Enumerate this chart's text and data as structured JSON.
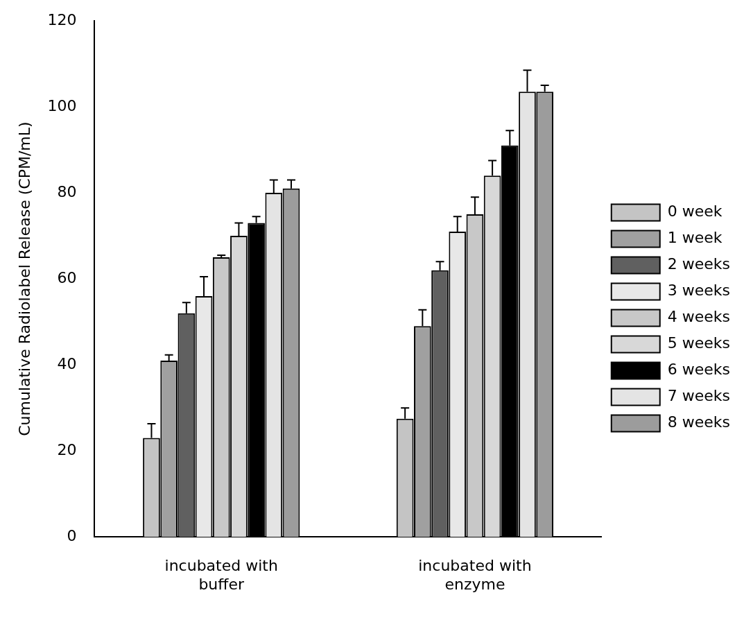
{
  "chart_data": {
    "type": "bar",
    "ylabel": "Cumulative Radiolabel Release (CPM/mL)",
    "categories": [
      "incubated with buffer",
      "incubated with enzyme"
    ],
    "series": [
      {
        "name": "0 week",
        "color": "#c4c4c4",
        "values": [
          23,
          27.5
        ],
        "errors": [
          3.3,
          2.5
        ]
      },
      {
        "name": "1 week",
        "color": "#a0a0a0",
        "values": [
          41,
          49
        ],
        "errors": [
          1.3,
          3.8
        ]
      },
      {
        "name": "2 weeks",
        "color": "#606060",
        "values": [
          52,
          62
        ],
        "errors": [
          2.5,
          2
        ]
      },
      {
        "name": "3 weeks",
        "color": "#e8e8e8",
        "values": [
          56,
          71
        ],
        "errors": [
          4.5,
          3.5
        ]
      },
      {
        "name": "4 weeks",
        "color": "#c8c8c8",
        "values": [
          65,
          75
        ],
        "errors": [
          0.5,
          4
        ]
      },
      {
        "name": "5 weeks",
        "color": "#d8d8d8",
        "values": [
          70,
          84
        ],
        "errors": [
          3,
          3.5
        ]
      },
      {
        "name": "6 weeks",
        "color": "#000000",
        "values": [
          73,
          91
        ],
        "errors": [
          1.5,
          3.5
        ]
      },
      {
        "name": "7 weeks",
        "color": "#e4e4e4",
        "values": [
          80,
          103.5
        ],
        "errors": [
          3,
          5
        ]
      },
      {
        "name": "8 weeks",
        "color": "#9c9c9c",
        "values": [
          81,
          103.5
        ],
        "errors": [
          2,
          1.5
        ]
      }
    ],
    "ylim": [
      0,
      120
    ],
    "yticks": [
      0,
      20,
      40,
      60,
      80,
      100,
      120
    ],
    "legend": "right"
  }
}
